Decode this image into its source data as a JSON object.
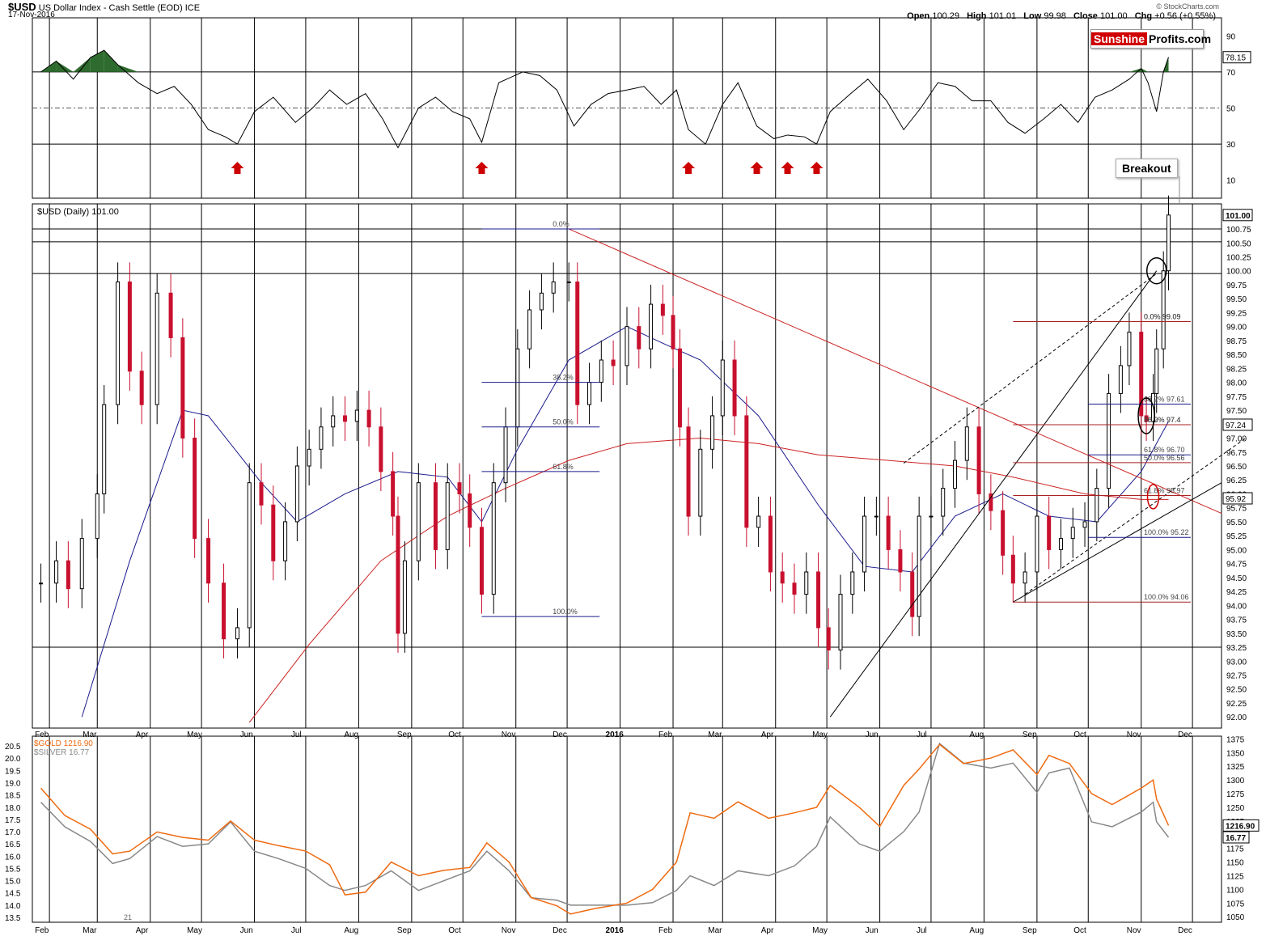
{
  "header": {
    "symbol": "$USD",
    "name": "US Dollar Index - Cash Settle (EOD)",
    "exchange": "ICE",
    "date": "17-Nov-2016",
    "open_label": "Open",
    "open": "100.29",
    "high_label": "High",
    "high": "101.01",
    "low_label": "Low",
    "low": "99.98",
    "close_label": "Close",
    "close": "101.00",
    "chg_label": "Chg",
    "chg": "+0.56 (+0.55%)",
    "credit": "© StockCharts.com"
  },
  "logo": {
    "part1": "Sunshine",
    "part2": "Profits.com"
  },
  "annotation": "Breakout",
  "main_label": "$USD (Daily) 101.00",
  "chart_data": [
    {
      "type": "line",
      "panel": "RSI(14) indicator",
      "yticks": [
        10,
        30,
        50,
        70,
        90
      ],
      "ylim": [
        0,
        100
      ],
      "last_value_label": "78.15",
      "signal_arrows_at": [
        "2015-05-22",
        "2015-10-12",
        "2016-02-10",
        "2016-03-21",
        "2016-04-08",
        "2016-04-25"
      ],
      "x": [
        "2015-01-27",
        "2015-02-05",
        "2015-02-15",
        "2015-02-25",
        "2015-03-05",
        "2015-03-13",
        "2015-03-25",
        "2015-04-05",
        "2015-04-15",
        "2015-04-25",
        "2015-05-05",
        "2015-05-15",
        "2015-05-22",
        "2015-06-01",
        "2015-06-12",
        "2015-06-25",
        "2015-07-05",
        "2015-07-15",
        "2015-07-25",
        "2015-08-05",
        "2015-08-15",
        "2015-08-24",
        "2015-09-05",
        "2015-09-15",
        "2015-09-25",
        "2015-10-05",
        "2015-10-12",
        "2015-10-22",
        "2015-11-05",
        "2015-11-15",
        "2015-11-25",
        "2015-12-05",
        "2015-12-15",
        "2015-12-25",
        "2016-01-05",
        "2016-01-15",
        "2016-01-25",
        "2016-02-03",
        "2016-02-10",
        "2016-02-20",
        "2016-03-01",
        "2016-03-10",
        "2016-03-21",
        "2016-03-31",
        "2016-04-08",
        "2016-04-18",
        "2016-04-25",
        "2016-05-03",
        "2016-05-15",
        "2016-05-25",
        "2016-06-05",
        "2016-06-15",
        "2016-06-25",
        "2016-07-05",
        "2016-07-15",
        "2016-07-25",
        "2016-08-05",
        "2016-08-15",
        "2016-08-25",
        "2016-09-05",
        "2016-09-15",
        "2016-09-25",
        "2016-10-05",
        "2016-10-15",
        "2016-10-25",
        "2016-11-01",
        "2016-11-05",
        "2016-11-10",
        "2016-11-14",
        "2016-11-17"
      ],
      "values": [
        70,
        76,
        66,
        78,
        82,
        74,
        64,
        58,
        62,
        52,
        38,
        34,
        30,
        48,
        56,
        42,
        50,
        60,
        52,
        58,
        44,
        28,
        50,
        56,
        48,
        44,
        31,
        64,
        70,
        68,
        60,
        40,
        52,
        58,
        60,
        62,
        52,
        60,
        38,
        30,
        52,
        64,
        40,
        33,
        35,
        34,
        30,
        48,
        58,
        66,
        54,
        38,
        50,
        64,
        62,
        54,
        54,
        42,
        36,
        44,
        52,
        42,
        56,
        60,
        66,
        72,
        64,
        48,
        70,
        78.15
      ]
    },
    {
      "type": "candlestick",
      "panel": "$USD (Daily)",
      "title": "$USD (Daily) 101.00",
      "ylim": [
        91.8,
        101.2
      ],
      "yticks": [
        92.0,
        92.25,
        92.5,
        92.75,
        93.0,
        93.25,
        93.5,
        93.75,
        94.0,
        94.25,
        94.5,
        94.75,
        95.0,
        95.25,
        95.5,
        95.75,
        96.0,
        96.25,
        96.5,
        96.75,
        97.0,
        97.25,
        97.5,
        97.75,
        98.0,
        98.25,
        98.5,
        98.75,
        99.0,
        99.25,
        99.5,
        99.75,
        100.0,
        100.25,
        100.5,
        100.75
      ],
      "price_tags": [
        "101.00",
        "97.24",
        "95.92"
      ],
      "x": [
        "2015-01-27",
        "2015-02-05",
        "2015-02-12",
        "2015-02-20",
        "2015-03-01",
        "2015-03-05",
        "2015-03-13",
        "2015-03-20",
        "2015-03-27",
        "2015-04-05",
        "2015-04-13",
        "2015-04-20",
        "2015-04-27",
        "2015-05-05",
        "2015-05-14",
        "2015-05-22",
        "2015-05-29",
        "2015-06-05",
        "2015-06-12",
        "2015-06-19",
        "2015-06-26",
        "2015-07-03",
        "2015-07-10",
        "2015-07-17",
        "2015-07-24",
        "2015-07-31",
        "2015-08-07",
        "2015-08-14",
        "2015-08-21",
        "2015-08-24",
        "2015-08-28",
        "2015-09-05",
        "2015-09-15",
        "2015-09-22",
        "2015-09-29",
        "2015-10-05",
        "2015-10-12",
        "2015-10-19",
        "2015-10-26",
        "2015-11-02",
        "2015-11-09",
        "2015-11-16",
        "2015-11-23",
        "2015-12-02",
        "2015-12-07",
        "2015-12-14",
        "2015-12-21",
        "2015-12-28",
        "2016-01-05",
        "2016-01-12",
        "2016-01-19",
        "2016-01-26",
        "2016-02-01",
        "2016-02-05",
        "2016-02-10",
        "2016-02-17",
        "2016-02-24",
        "2016-03-01",
        "2016-03-08",
        "2016-03-15",
        "2016-03-22",
        "2016-03-29",
        "2016-04-05",
        "2016-04-12",
        "2016-04-19",
        "2016-04-26",
        "2016-05-02",
        "2016-05-09",
        "2016-05-16",
        "2016-05-23",
        "2016-05-30",
        "2016-06-06",
        "2016-06-13",
        "2016-06-20",
        "2016-06-24",
        "2016-07-01",
        "2016-07-08",
        "2016-07-15",
        "2016-07-22",
        "2016-07-29",
        "2016-08-05",
        "2016-08-12",
        "2016-08-18",
        "2016-08-25",
        "2016-09-01",
        "2016-09-08",
        "2016-09-15",
        "2016-09-22",
        "2016-09-29",
        "2016-10-06",
        "2016-10-13",
        "2016-10-20",
        "2016-10-25",
        "2016-11-01",
        "2016-11-04",
        "2016-11-08",
        "2016-11-10",
        "2016-11-14",
        "2016-11-17"
      ],
      "close": [
        94.4,
        94.8,
        94.3,
        95.2,
        96.0,
        97.6,
        99.8,
        98.2,
        97.6,
        99.6,
        98.8,
        97.0,
        95.2,
        94.4,
        93.4,
        93.6,
        96.2,
        95.8,
        94.8,
        95.5,
        96.5,
        96.8,
        97.2,
        97.4,
        97.3,
        97.5,
        97.2,
        96.4,
        95.6,
        93.5,
        94.8,
        96.2,
        95.0,
        96.2,
        96.0,
        95.4,
        94.2,
        96.2,
        97.2,
        98.6,
        99.3,
        99.6,
        99.8,
        99.8,
        97.6,
        98.0,
        98.4,
        98.3,
        99.0,
        98.6,
        99.4,
        99.2,
        98.6,
        97.2,
        95.6,
        96.8,
        97.4,
        98.4,
        97.4,
        95.4,
        95.6,
        94.6,
        94.4,
        94.2,
        94.6,
        93.6,
        93.2,
        94.2,
        94.6,
        95.6,
        95.6,
        95.0,
        94.6,
        93.8,
        95.6,
        95.6,
        96.1,
        96.6,
        97.2,
        96.0,
        95.7,
        94.9,
        94.4,
        94.6,
        95.6,
        95.0,
        95.2,
        95.4,
        95.5,
        96.1,
        97.8,
        98.3,
        98.9,
        97.4,
        97.3,
        97.8,
        98.6,
        100.0,
        101.0
      ],
      "ma50_x": [
        "2015-02-20",
        "2015-03-20",
        "2015-04-20",
        "2015-05-05",
        "2015-06-05",
        "2015-06-26",
        "2015-07-24",
        "2015-08-24",
        "2015-09-22",
        "2015-10-12",
        "2015-11-02",
        "2015-12-02",
        "2016-01-05",
        "2016-01-26",
        "2016-02-17",
        "2016-03-22",
        "2016-04-26",
        "2016-05-23",
        "2016-06-20",
        "2016-07-15",
        "2016-08-12",
        "2016-09-08",
        "2016-10-06",
        "2016-11-01",
        "2016-11-17"
      ],
      "ma50": [
        92.0,
        94.8,
        97.5,
        97.4,
        96.2,
        95.5,
        96.0,
        96.4,
        96.3,
        95.5,
        96.8,
        98.4,
        99.0,
        98.7,
        98.4,
        97.4,
        95.8,
        94.7,
        94.6,
        95.6,
        96.0,
        95.6,
        95.5,
        96.4,
        97.3
      ],
      "ma200_x": [
        "2015-05-29",
        "2015-07-03",
        "2015-08-14",
        "2015-09-22",
        "2015-10-26",
        "2015-12-02",
        "2016-01-05",
        "2016-02-17",
        "2016-03-22",
        "2016-04-26",
        "2016-06-06",
        "2016-07-15",
        "2016-08-18",
        "2016-09-29",
        "2016-11-01",
        "2016-11-17"
      ],
      "ma200": [
        91.9,
        93.3,
        94.8,
        95.6,
        96.1,
        96.6,
        96.9,
        97.0,
        96.9,
        96.7,
        96.6,
        96.5,
        96.3,
        96.0,
        95.9,
        95.9
      ],
      "horizontal_levels": [
        100.75,
        100.52,
        99.95,
        93.25
      ],
      "fib_labels_set_1": [
        "0.0%",
        "38.2%",
        "50.0%",
        "61.8%",
        "100.0%"
      ],
      "fib_labels_set_2": [
        "0.0% 99.09",
        "38.2% 97.61",
        "50.0% 97.4",
        "61.8% 96.70",
        "100.0% 95.22"
      ],
      "fib_labels_set_3": [
        "0.0% 99.09",
        "38.2% 97.4",
        "50.0% 96.56",
        "61.8% 95.97",
        "100.0% 94.06"
      ]
    },
    {
      "type": "line",
      "panel": "Gold and Silver",
      "series": [
        {
          "name": "$GOLD 1216.90",
          "color": "#ee6a10",
          "last_label": "1216.90",
          "x": [
            "2015-01-27",
            "2015-02-10",
            "2015-02-25",
            "2015-03-10",
            "2015-03-20",
            "2015-04-05",
            "2015-04-20",
            "2015-05-05",
            "2015-05-18",
            "2015-06-01",
            "2015-06-15",
            "2015-07-01",
            "2015-07-15",
            "2015-07-24",
            "2015-08-05",
            "2015-08-20",
            "2015-09-05",
            "2015-09-20",
            "2015-10-05",
            "2015-10-15",
            "2015-10-28",
            "2015-11-10",
            "2015-11-25",
            "2015-12-03",
            "2015-12-17",
            "2016-01-05",
            "2016-01-20",
            "2016-02-03",
            "2016-02-11",
            "2016-02-25",
            "2016-03-10",
            "2016-03-28",
            "2016-04-12",
            "2016-04-25",
            "2016-05-03",
            "2016-05-20",
            "2016-06-01",
            "2016-06-15",
            "2016-06-24",
            "2016-07-06",
            "2016-07-20",
            "2016-08-05",
            "2016-08-18",
            "2016-09-01",
            "2016-09-08",
            "2016-09-20",
            "2016-10-03",
            "2016-10-15",
            "2016-11-01",
            "2016-11-08",
            "2016-11-10",
            "2016-11-17"
          ],
          "values": [
            1285,
            1235,
            1210,
            1165,
            1170,
            1205,
            1195,
            1190,
            1225,
            1190,
            1180,
            1170,
            1145,
            1090,
            1095,
            1150,
            1125,
            1135,
            1140,
            1185,
            1150,
            1085,
            1070,
            1055,
            1065,
            1075,
            1100,
            1150,
            1240,
            1230,
            1260,
            1230,
            1240,
            1250,
            1290,
            1250,
            1215,
            1290,
            1320,
            1365,
            1330,
            1340,
            1355,
            1310,
            1345,
            1330,
            1275,
            1255,
            1285,
            1300,
            1265,
            1216.9
          ]
        },
        {
          "name": "$SILVER 16.77",
          "color": "#888888",
          "last_label": "16.77",
          "x": [
            "2015-01-27",
            "2015-02-10",
            "2015-02-25",
            "2015-03-10",
            "2015-03-20",
            "2015-04-05",
            "2015-04-20",
            "2015-05-05",
            "2015-05-18",
            "2015-06-01",
            "2015-06-15",
            "2015-07-01",
            "2015-07-15",
            "2015-07-24",
            "2015-08-05",
            "2015-08-20",
            "2015-09-05",
            "2015-09-20",
            "2015-10-05",
            "2015-10-15",
            "2015-10-28",
            "2015-11-10",
            "2015-11-25",
            "2015-12-03",
            "2015-12-17",
            "2016-01-05",
            "2016-01-20",
            "2016-02-03",
            "2016-02-11",
            "2016-02-25",
            "2016-03-10",
            "2016-03-28",
            "2016-04-12",
            "2016-04-25",
            "2016-05-03",
            "2016-05-20",
            "2016-06-01",
            "2016-06-15",
            "2016-06-24",
            "2016-07-06",
            "2016-07-20",
            "2016-08-05",
            "2016-08-18",
            "2016-09-01",
            "2016-09-08",
            "2016-09-20",
            "2016-10-03",
            "2016-10-15",
            "2016-11-01",
            "2016-11-08",
            "2016-11-10",
            "2016-11-17"
          ],
          "values": [
            18.2,
            17.2,
            16.6,
            15.7,
            15.9,
            16.8,
            16.4,
            16.5,
            17.4,
            16.2,
            15.9,
            15.5,
            14.8,
            14.6,
            14.8,
            15.4,
            14.6,
            15.0,
            15.4,
            16.2,
            15.4,
            14.3,
            14.2,
            14.0,
            14.0,
            14.0,
            14.1,
            14.6,
            15.2,
            14.8,
            15.4,
            15.2,
            15.6,
            16.4,
            17.6,
            16.5,
            16.2,
            17.0,
            17.8,
            20.6,
            19.8,
            19.6,
            19.8,
            18.6,
            19.4,
            19.6,
            17.4,
            17.2,
            17.8,
            18.2,
            17.4,
            16.77
          ]
        }
      ],
      "y_left_ticks": [
        13.5,
        14.0,
        14.5,
        15.0,
        15.5,
        16.0,
        16.5,
        17.0,
        17.5,
        18.0,
        18.5,
        19.0,
        19.5,
        20.0,
        20.5
      ],
      "y_right_ticks": [
        1050,
        1075,
        1100,
        1125,
        1150,
        1175,
        1200,
        1225,
        1250,
        1275,
        1300,
        1325,
        1350,
        1375
      ],
      "corner_label": "21"
    }
  ],
  "x_axis": {
    "month_labels": [
      "Feb",
      "Mar",
      "Apr",
      "May",
      "Jun",
      "Jul",
      "Aug",
      "Sep",
      "Oct",
      "Nov",
      "Dec",
      "2016",
      "Feb",
      "Mar",
      "Apr",
      "May",
      "Jun",
      "Jul",
      "Aug",
      "Sep",
      "Oct",
      "Nov",
      "Dec"
    ],
    "month_dates": [
      "2015-02-01",
      "2015-03-01",
      "2015-04-01",
      "2015-05-01",
      "2015-06-01",
      "2015-07-01",
      "2015-08-01",
      "2015-09-01",
      "2015-10-01",
      "2015-11-01",
      "2015-12-01",
      "2016-01-01",
      "2016-02-01",
      "2016-03-01",
      "2016-04-01",
      "2016-05-01",
      "2016-06-01",
      "2016-07-01",
      "2016-08-01",
      "2016-09-01",
      "2016-10-01",
      "2016-11-01",
      "2016-12-01"
    ]
  },
  "colors": {
    "candle_up": "#000000",
    "candle_down": "#c8102e",
    "ma50": "#1a1a8c",
    "ma200": "#cc2222",
    "rsi": "#000000",
    "rsi_fill": "#2e6b2e",
    "arrow": "#cc0000"
  }
}
